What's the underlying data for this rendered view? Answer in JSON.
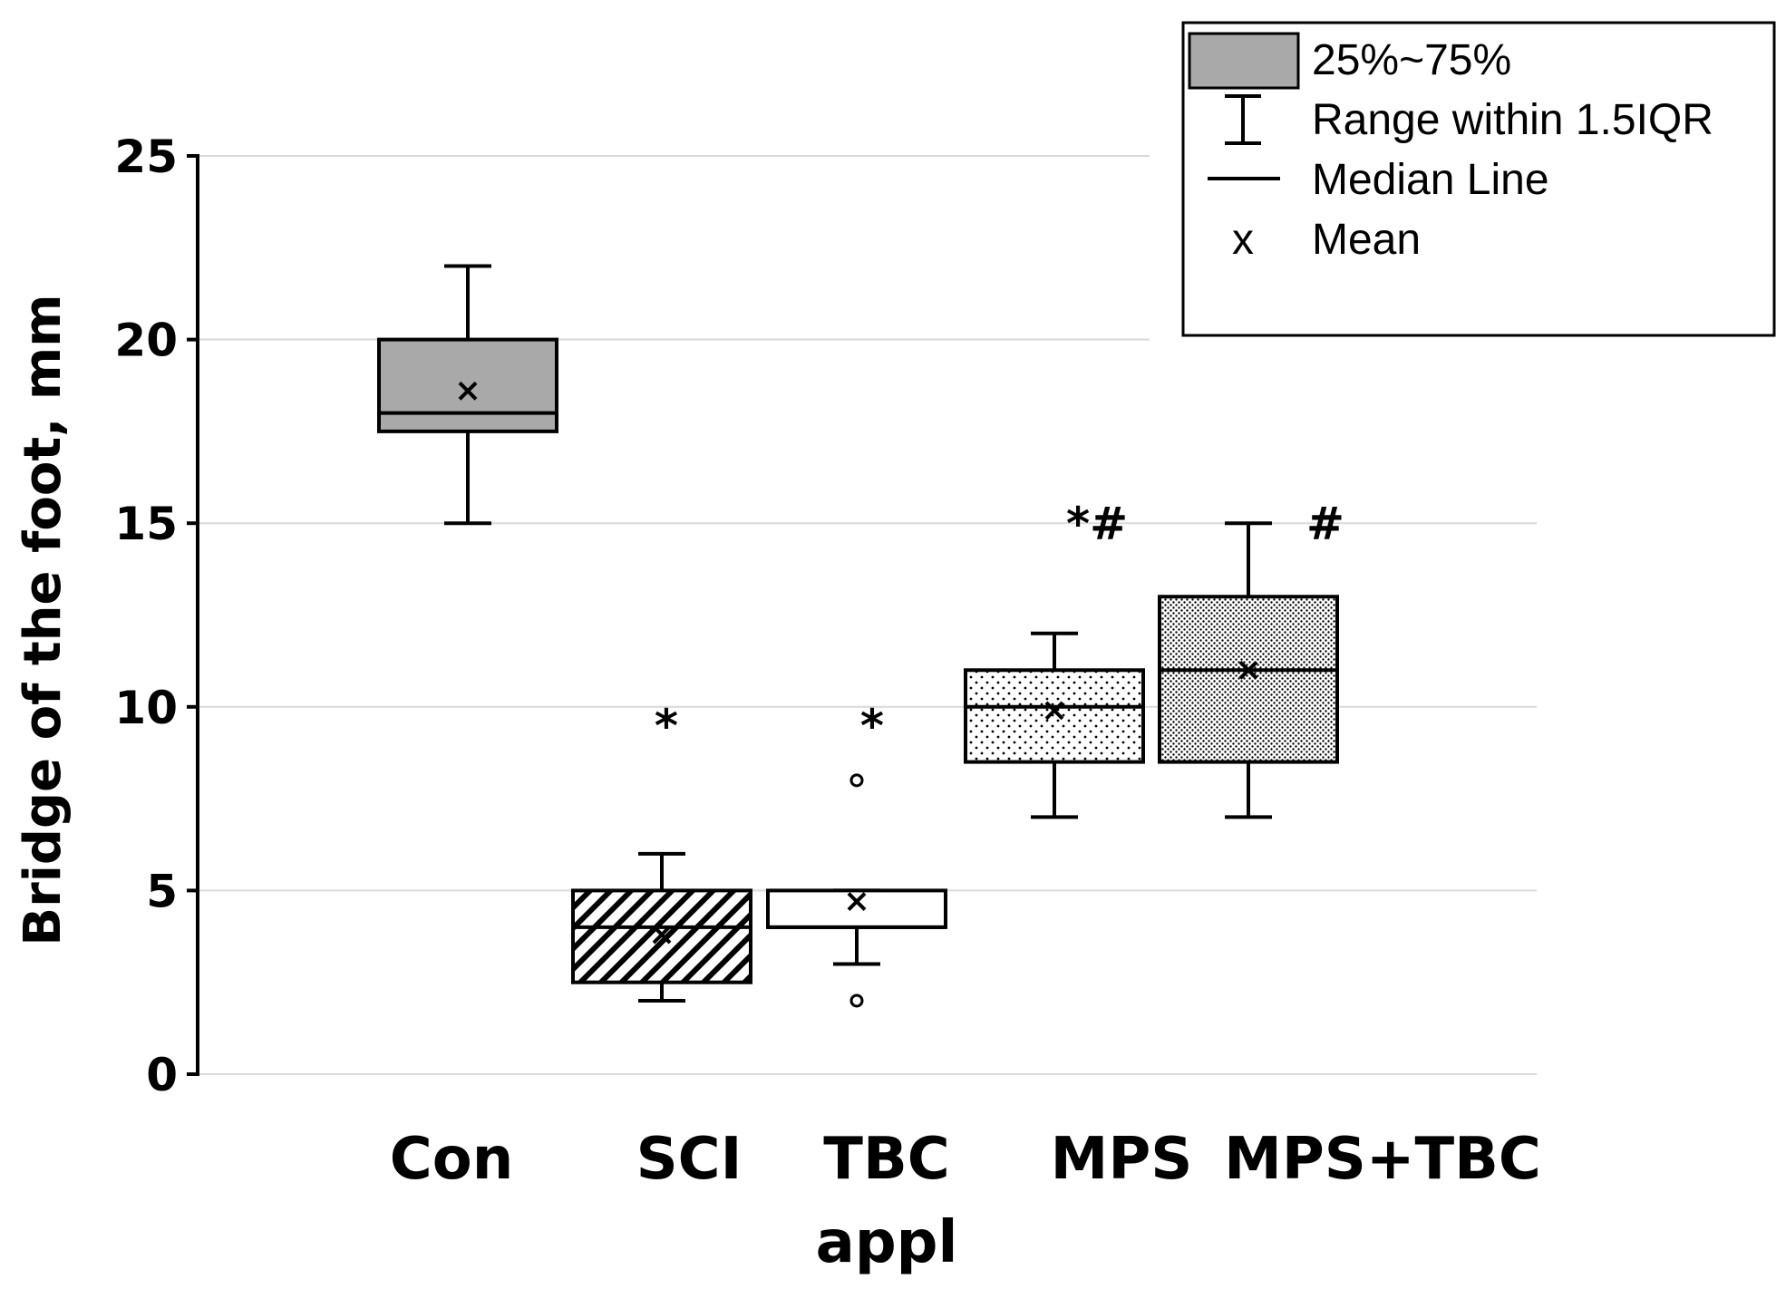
{
  "chart_data": {
    "type": "box",
    "title": "",
    "xlabel": "",
    "ylabel": "Bridge of the foot, mm",
    "ylim": [
      0,
      25
    ],
    "yticks": [
      "0",
      "5",
      "10",
      "15",
      "20",
      "25"
    ],
    "grid": true,
    "categories": [
      {
        "label": "Con",
        "label2": ""
      },
      {
        "label": "SCI",
        "label2": ""
      },
      {
        "label": "TBC",
        "label2": "appl"
      },
      {
        "label": "MPS",
        "label2": ""
      },
      {
        "label": "MPS+TBC",
        "label2": ""
      }
    ],
    "boxes": [
      {
        "group": "Con",
        "whisker_low": 15,
        "q1": 17.5,
        "median": 18,
        "q3": 20,
        "whisker_high": 22,
        "mean": 18.6,
        "outliers": [],
        "pattern": "solid-gray",
        "significance": ""
      },
      {
        "group": "SCI",
        "whisker_low": 2,
        "q1": 2.5,
        "median": 4,
        "q3": 5,
        "whisker_high": 6,
        "mean": 3.8,
        "outliers": [],
        "pattern": "diagonal-hatch",
        "significance": "*"
      },
      {
        "group": "TBC appl",
        "whisker_low": 3,
        "q1": 4,
        "median": 4,
        "q3": 5,
        "whisker_high": 5,
        "mean": 4.7,
        "outliers": [
          2,
          8
        ],
        "pattern": "none",
        "significance": "*"
      },
      {
        "group": "MPS",
        "whisker_low": 7,
        "q1": 8.5,
        "median": 10,
        "q3": 11,
        "whisker_high": 12,
        "mean": 9.9,
        "outliers": [],
        "pattern": "sparse-dots",
        "significance": "*#"
      },
      {
        "group": "MPS+TBC",
        "whisker_low": 7,
        "q1": 8.5,
        "median": 11,
        "q3": 13,
        "whisker_high": 15,
        "mean": 11,
        "outliers": [],
        "pattern": "dense-dots",
        "significance": "#"
      }
    ],
    "legend": {
      "position": "top-right",
      "entries": [
        {
          "symbol": "box",
          "label": "25%~75%"
        },
        {
          "symbol": "whisker",
          "label": "Range within 1.5IQR"
        },
        {
          "symbol": "line",
          "label": "Median Line"
        },
        {
          "symbol": "x",
          "label": "Mean",
          "glyph": "x"
        }
      ]
    }
  }
}
